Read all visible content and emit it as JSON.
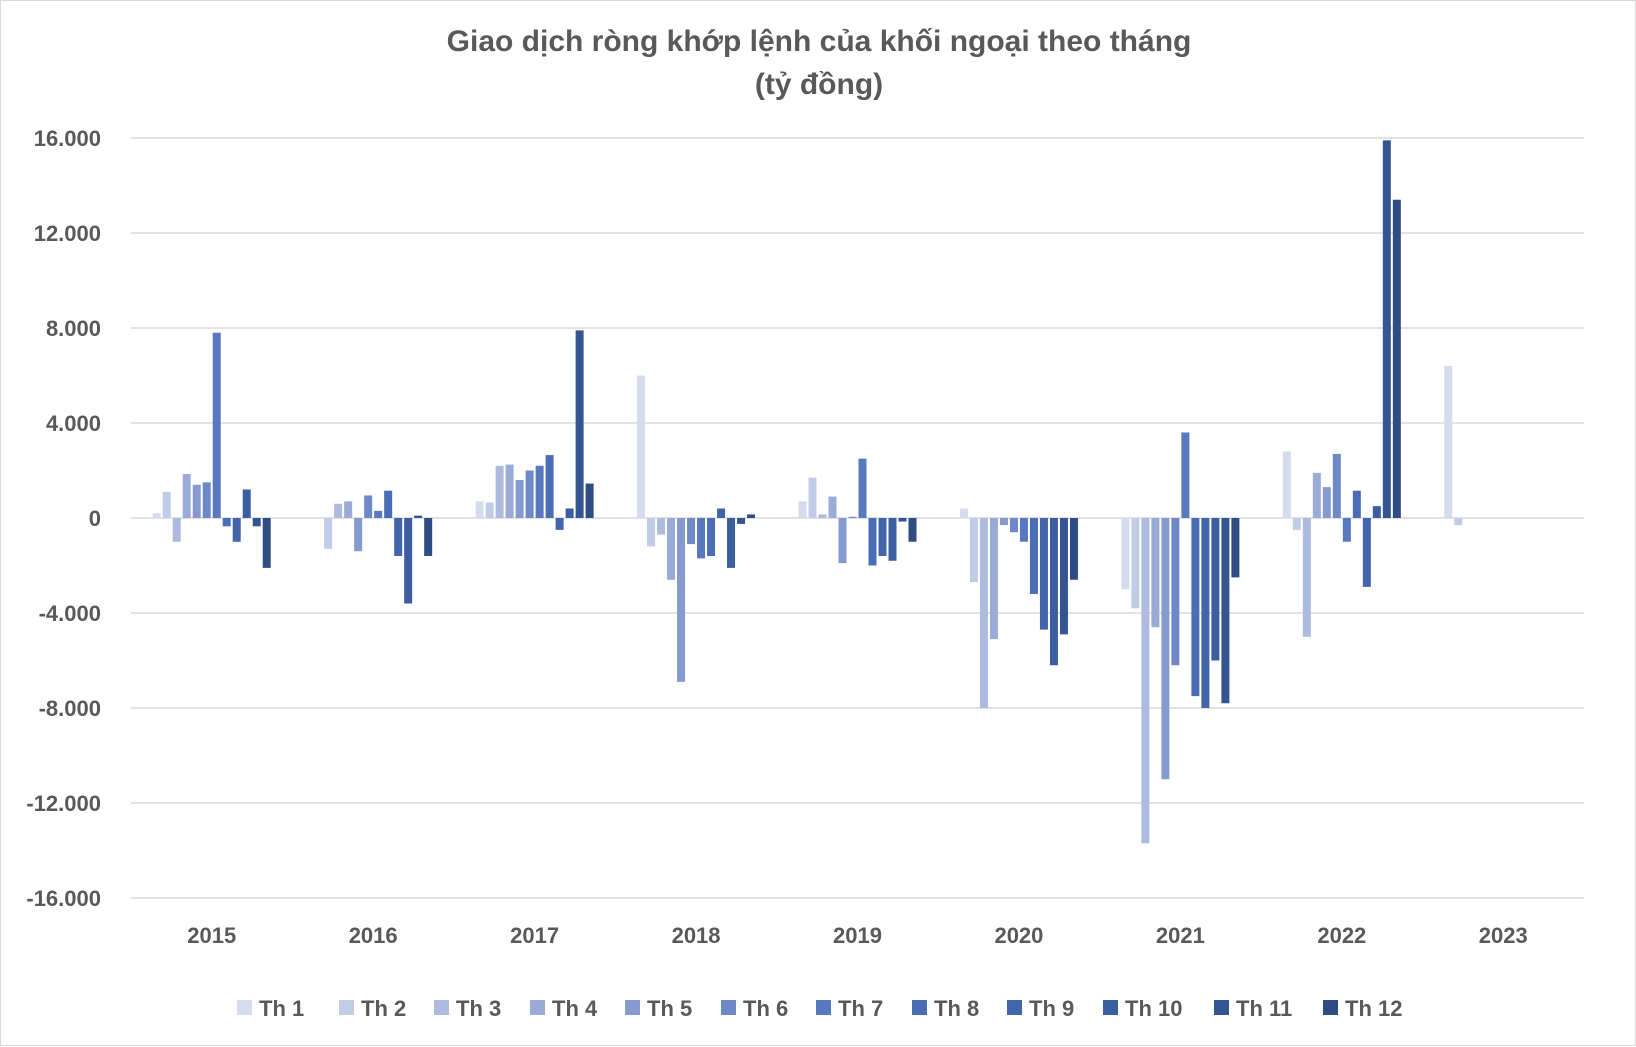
{
  "chart_data": {
    "type": "bar",
    "title": "Giao dịch ròng khớp lệnh của khối ngoại theo tháng",
    "subtitle": "(tỷ đồng)",
    "xlabel": "",
    "ylabel": "",
    "ylim": [
      -16000,
      16000
    ],
    "yticks": [
      16000,
      12000,
      8000,
      4000,
      0,
      -4000,
      -8000,
      -12000,
      -16000
    ],
    "ytick_labels": [
      "16.000",
      "12.000",
      "8.000",
      "4.000",
      "0",
      "-4.000",
      "-8.000",
      "-12.000",
      "-16.000"
    ],
    "grid": true,
    "legend_position": "bottom",
    "categories": [
      "2015",
      "2016",
      "2017",
      "2018",
      "2019",
      "2020",
      "2021",
      "2022",
      "2023"
    ],
    "series": [
      {
        "name": "Th 1",
        "color": "#d4dced",
        "values": [
          200,
          0,
          700,
          6000,
          700,
          400,
          -3000,
          2800,
          6400
        ]
      },
      {
        "name": "Th 2",
        "color": "#c1cce6",
        "values": [
          1100,
          -1300,
          650,
          -1200,
          1700,
          -2700,
          -3800,
          -500,
          -300
        ]
      },
      {
        "name": "Th 3",
        "color": "#adbbde",
        "values": [
          -1000,
          600,
          2200,
          -700,
          150,
          -8000,
          -13700,
          -5000,
          0
        ]
      },
      {
        "name": "Th 4",
        "color": "#9aabd7",
        "values": [
          1850,
          700,
          2250,
          -2600,
          900,
          -5100,
          -4600,
          1900,
          0
        ]
      },
      {
        "name": "Th 5",
        "color": "#869acf",
        "values": [
          1400,
          -1400,
          1600,
          -6900,
          -1900,
          -300,
          -11000,
          1300,
          0
        ]
      },
      {
        "name": "Th 6",
        "color": "#6f88c7",
        "values": [
          1500,
          950,
          2000,
          -1100,
          50,
          -600,
          -6200,
          2700,
          0
        ]
      },
      {
        "name": "Th 7",
        "color": "#5878bf",
        "values": [
          7800,
          300,
          2200,
          -1700,
          2500,
          -1000,
          3600,
          -1000,
          0
        ]
      },
      {
        "name": "Th 8",
        "color": "#4b6db6",
        "values": [
          -350,
          1150,
          2650,
          -1600,
          -2000,
          -3200,
          -7500,
          1150,
          0
        ]
      },
      {
        "name": "Th 9",
        "color": "#4264ab",
        "values": [
          -1000,
          -1600,
          -500,
          400,
          -1600,
          -4700,
          -8000,
          -2900,
          0
        ]
      },
      {
        "name": "Th 10",
        "color": "#3b5ea0",
        "values": [
          1200,
          -3600,
          400,
          -2100,
          -1800,
          -6200,
          -6000,
          500,
          0
        ]
      },
      {
        "name": "Th 11",
        "color": "#345591",
        "values": [
          -350,
          100,
          7900,
          -250,
          -150,
          -4900,
          -7800,
          15900,
          0
        ]
      },
      {
        "name": "Th 12",
        "color": "#2f4d82",
        "values": [
          -2100,
          -1600,
          1450,
          150,
          -1000,
          -2600,
          -2500,
          13400,
          0
        ]
      }
    ]
  }
}
